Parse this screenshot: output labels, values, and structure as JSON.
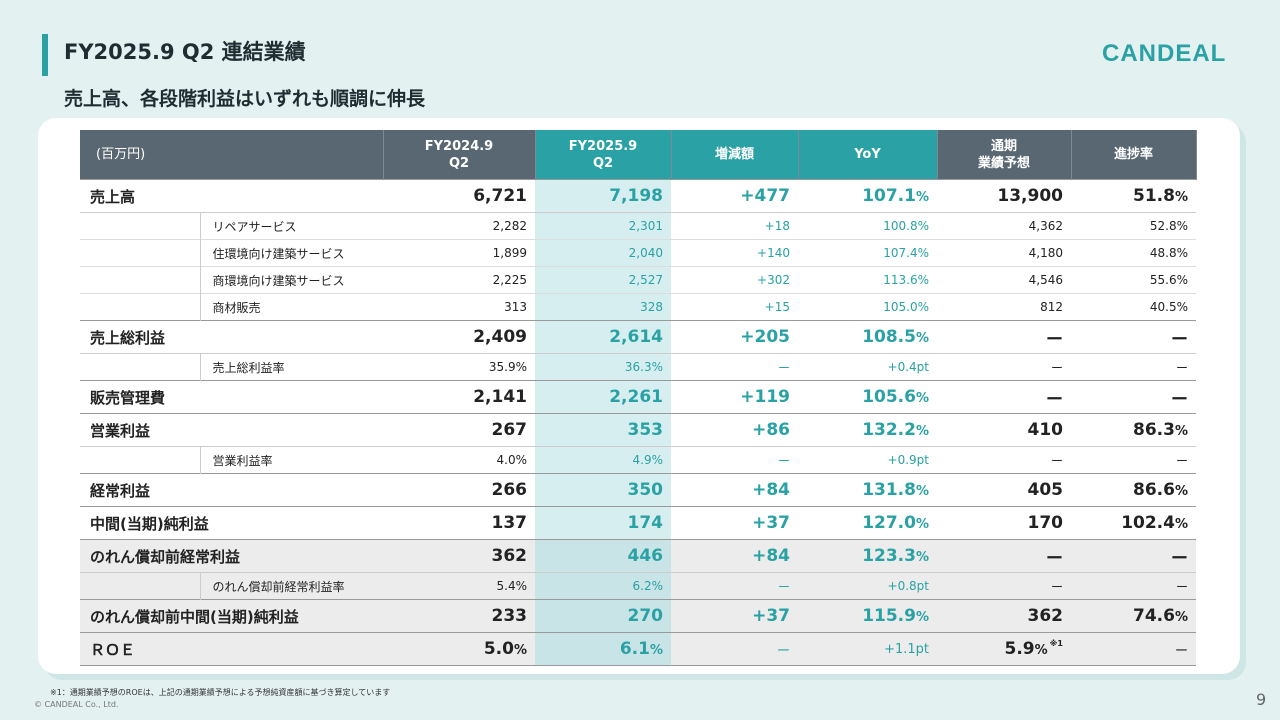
{
  "header": {
    "title": "FY2025.9 Q2 連結業績",
    "subtitle": "売上高、各段階利益はいずれも順調に伸長",
    "logo": "CANDEAL"
  },
  "table": {
    "headers": {
      "unit": "(百万円)",
      "fy2024_l1": "FY2024.9",
      "fy2024_l2": "Q2",
      "fy2025_l1": "FY2025.9",
      "fy2025_l2": "Q2",
      "diff": "増減額",
      "yoy": "YoY",
      "forecast_l1": "通期",
      "forecast_l2": "業績予想",
      "progress": "進捗率"
    },
    "rows": [
      {
        "label": "売上高",
        "fy2024": "6,721",
        "fy2025": "7,198",
        "diff": "+477",
        "yoy": "107.1",
        "fc": "13,900",
        "prog": "51.8"
      },
      {
        "label": "リペアサービス",
        "fy2024": "2,282",
        "fy2025": "2,301",
        "diff": "+18",
        "yoy": "100.8%",
        "fc": "4,362",
        "prog": "52.8%"
      },
      {
        "label": "住環境向け建築サービス",
        "fy2024": "1,899",
        "fy2025": "2,040",
        "diff": "+140",
        "yoy": "107.4%",
        "fc": "4,180",
        "prog": "48.8%"
      },
      {
        "label": "商環境向け建築サービス",
        "fy2024": "2,225",
        "fy2025": "2,527",
        "diff": "+302",
        "yoy": "113.6%",
        "fc": "4,546",
        "prog": "55.6%"
      },
      {
        "label": "商材販売",
        "fy2024": "313",
        "fy2025": "328",
        "diff": "+15",
        "yoy": "105.0%",
        "fc": "812",
        "prog": "40.5%"
      },
      {
        "label": "売上総利益",
        "fy2024": "2,409",
        "fy2025": "2,614",
        "diff": "+205",
        "yoy": "108.5",
        "fc": "ー",
        "prog": "ー"
      },
      {
        "label": "売上総利益率",
        "fy2024": "35.9%",
        "fy2025": "36.3%",
        "diff": "ー",
        "yoy": "+0.4pt",
        "fc": "ー",
        "prog": "ー"
      },
      {
        "label": "販売管理費",
        "fy2024": "2,141",
        "fy2025": "2,261",
        "diff": "+119",
        "yoy": "105.6",
        "fc": "ー",
        "prog": "ー"
      },
      {
        "label": "営業利益",
        "fy2024": "267",
        "fy2025": "353",
        "diff": "+86",
        "yoy": "132.2",
        "fc": "410",
        "prog": "86.3"
      },
      {
        "label": "営業利益率",
        "fy2024": "4.0%",
        "fy2025": "4.9%",
        "diff": "ー",
        "yoy": "+0.9pt",
        "fc": "ー",
        "prog": "ー"
      },
      {
        "label": "経常利益",
        "fy2024": "266",
        "fy2025": "350",
        "diff": "+84",
        "yoy": "131.8",
        "fc": "405",
        "prog": "86.6"
      },
      {
        "label": "中間(当期)純利益",
        "fy2024": "137",
        "fy2025": "174",
        "diff": "+37",
        "yoy": "127.0",
        "fc": "170",
        "prog": "102.4"
      },
      {
        "label": "のれん償却前経常利益",
        "fy2024": "362",
        "fy2025": "446",
        "diff": "+84",
        "yoy": "123.3",
        "fc": "ー",
        "prog": "ー"
      },
      {
        "label": "のれん償却前経常利益率",
        "fy2024": "5.4%",
        "fy2025": "6.2%",
        "diff": "ー",
        "yoy": "+0.8pt",
        "fc": "ー",
        "prog": "ー"
      },
      {
        "label": "のれん償却前中間(当期)純利益",
        "fy2024": "233",
        "fy2025": "270",
        "diff": "+37",
        "yoy": "115.9",
        "fc": "362",
        "prog": "74.6"
      },
      {
        "label": "ＲＯＥ",
        "fy2024": "5.0",
        "fy2025": "6.1",
        "diff": "ー",
        "yoy": "+1.1pt",
        "fc": "5.9",
        "fc_note": "※1",
        "prog": "ー"
      }
    ],
    "pct_sign": "%"
  },
  "footer": {
    "footnote": "※1：通期業績予想のROEは、上記の通期業績予想による予想純資産額に基づき算定しています",
    "copyright": "© CANDEAL Co., Ltd.",
    "page": "9"
  },
  "colors": {
    "accent": "#2aa1a4",
    "header_gray": "#596772",
    "highlight": "#d7eef0"
  }
}
